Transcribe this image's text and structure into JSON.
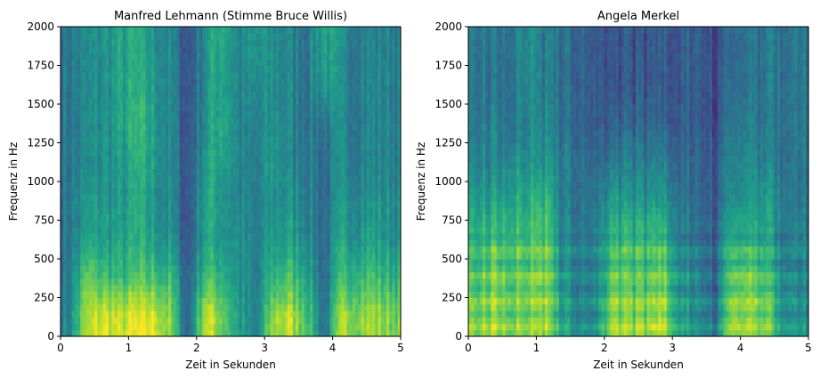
{
  "chart_data": [
    {
      "type": "heatmap",
      "subtype": "spectrogram",
      "colormap": "viridis",
      "title": "Manfred Lehmann (Stimme Bruce Willis)",
      "xlabel": "Zeit in Sekunden",
      "ylabel": "Frequenz in Hz",
      "xlim": [
        0,
        5
      ],
      "ylim": [
        0,
        2000
      ],
      "xticks": [
        "0",
        "1",
        "2",
        "3",
        "4",
        "5"
      ],
      "yticks": [
        "0",
        "250",
        "500",
        "750",
        "1000",
        "1250",
        "1500",
        "1750",
        "2000"
      ],
      "time_bin_s": 0.25,
      "freq_bin_hz": 250,
      "intensity_rows_low_to_high_freq": [
        [
          0.45,
          0.85,
          0.95,
          0.9,
          0.95,
          0.95,
          0.8,
          0.3,
          0.95,
          0.8,
          0.55,
          0.4,
          0.85,
          0.9,
          0.75,
          0.35,
          0.85,
          0.85,
          0.85,
          0.8
        ],
        [
          0.4,
          0.75,
          0.7,
          0.65,
          0.7,
          0.7,
          0.65,
          0.3,
          0.7,
          0.65,
          0.5,
          0.4,
          0.65,
          0.7,
          0.6,
          0.35,
          0.65,
          0.7,
          0.7,
          0.65
        ],
        [
          0.4,
          0.55,
          0.55,
          0.55,
          0.6,
          0.55,
          0.5,
          0.25,
          0.6,
          0.55,
          0.5,
          0.4,
          0.55,
          0.55,
          0.5,
          0.35,
          0.55,
          0.55,
          0.55,
          0.5
        ],
        [
          0.4,
          0.5,
          0.55,
          0.5,
          0.6,
          0.5,
          0.45,
          0.25,
          0.6,
          0.55,
          0.45,
          0.4,
          0.5,
          0.5,
          0.45,
          0.35,
          0.5,
          0.5,
          0.5,
          0.5
        ],
        [
          0.4,
          0.45,
          0.5,
          0.5,
          0.6,
          0.55,
          0.45,
          0.25,
          0.55,
          0.6,
          0.45,
          0.4,
          0.55,
          0.45,
          0.45,
          0.35,
          0.45,
          0.45,
          0.45,
          0.45
        ],
        [
          0.4,
          0.45,
          0.5,
          0.55,
          0.65,
          0.55,
          0.45,
          0.25,
          0.5,
          0.65,
          0.45,
          0.4,
          0.5,
          0.45,
          0.4,
          0.4,
          0.45,
          0.45,
          0.45,
          0.45
        ],
        [
          0.4,
          0.45,
          0.5,
          0.55,
          0.6,
          0.55,
          0.45,
          0.25,
          0.5,
          0.6,
          0.45,
          0.45,
          0.5,
          0.45,
          0.4,
          0.55,
          0.45,
          0.45,
          0.45,
          0.45
        ],
        [
          0.4,
          0.45,
          0.5,
          0.55,
          0.6,
          0.5,
          0.45,
          0.25,
          0.5,
          0.65,
          0.45,
          0.5,
          0.5,
          0.45,
          0.4,
          0.6,
          0.45,
          0.45,
          0.45,
          0.45
        ]
      ]
    },
    {
      "type": "heatmap",
      "subtype": "spectrogram",
      "colormap": "viridis",
      "title": "Angela Merkel",
      "xlabel": "Zeit in Sekunden",
      "ylabel": "Frequenz in Hz",
      "xlim": [
        0,
        5
      ],
      "ylim": [
        0,
        2000
      ],
      "xticks": [
        "0",
        "1",
        "2",
        "3",
        "4",
        "5"
      ],
      "yticks": [
        "0",
        "250",
        "500",
        "750",
        "1000",
        "1250",
        "1500",
        "1750",
        "2000"
      ],
      "time_bin_s": 0.25,
      "freq_bin_hz": 250,
      "intensity_rows_low_to_high_freq": [
        [
          0.8,
          0.85,
          0.8,
          0.8,
          0.85,
          0.55,
          0.5,
          0.5,
          0.85,
          0.8,
          0.8,
          0.85,
          0.55,
          0.5,
          0.35,
          0.85,
          0.85,
          0.8,
          0.55,
          0.5
        ],
        [
          0.7,
          0.8,
          0.75,
          0.75,
          0.8,
          0.5,
          0.45,
          0.45,
          0.75,
          0.7,
          0.7,
          0.75,
          0.5,
          0.45,
          0.3,
          0.75,
          0.8,
          0.7,
          0.5,
          0.45
        ],
        [
          0.65,
          0.7,
          0.7,
          0.7,
          0.75,
          0.45,
          0.45,
          0.45,
          0.65,
          0.65,
          0.65,
          0.65,
          0.45,
          0.4,
          0.3,
          0.65,
          0.65,
          0.6,
          0.45,
          0.45
        ],
        [
          0.55,
          0.55,
          0.6,
          0.6,
          0.65,
          0.4,
          0.4,
          0.4,
          0.55,
          0.5,
          0.5,
          0.5,
          0.4,
          0.35,
          0.25,
          0.5,
          0.55,
          0.55,
          0.45,
          0.4
        ],
        [
          0.45,
          0.45,
          0.5,
          0.5,
          0.5,
          0.4,
          0.4,
          0.35,
          0.4,
          0.4,
          0.4,
          0.4,
          0.35,
          0.35,
          0.25,
          0.45,
          0.5,
          0.45,
          0.4,
          0.4
        ],
        [
          0.4,
          0.45,
          0.4,
          0.45,
          0.45,
          0.35,
          0.35,
          0.3,
          0.3,
          0.3,
          0.3,
          0.3,
          0.3,
          0.3,
          0.2,
          0.4,
          0.45,
          0.4,
          0.4,
          0.4
        ],
        [
          0.4,
          0.4,
          0.4,
          0.5,
          0.4,
          0.35,
          0.35,
          0.3,
          0.25,
          0.25,
          0.25,
          0.25,
          0.3,
          0.3,
          0.2,
          0.35,
          0.4,
          0.4,
          0.4,
          0.4
        ],
        [
          0.4,
          0.4,
          0.4,
          0.5,
          0.4,
          0.35,
          0.35,
          0.3,
          0.25,
          0.25,
          0.25,
          0.25,
          0.3,
          0.3,
          0.2,
          0.35,
          0.4,
          0.4,
          0.4,
          0.4
        ]
      ]
    }
  ]
}
